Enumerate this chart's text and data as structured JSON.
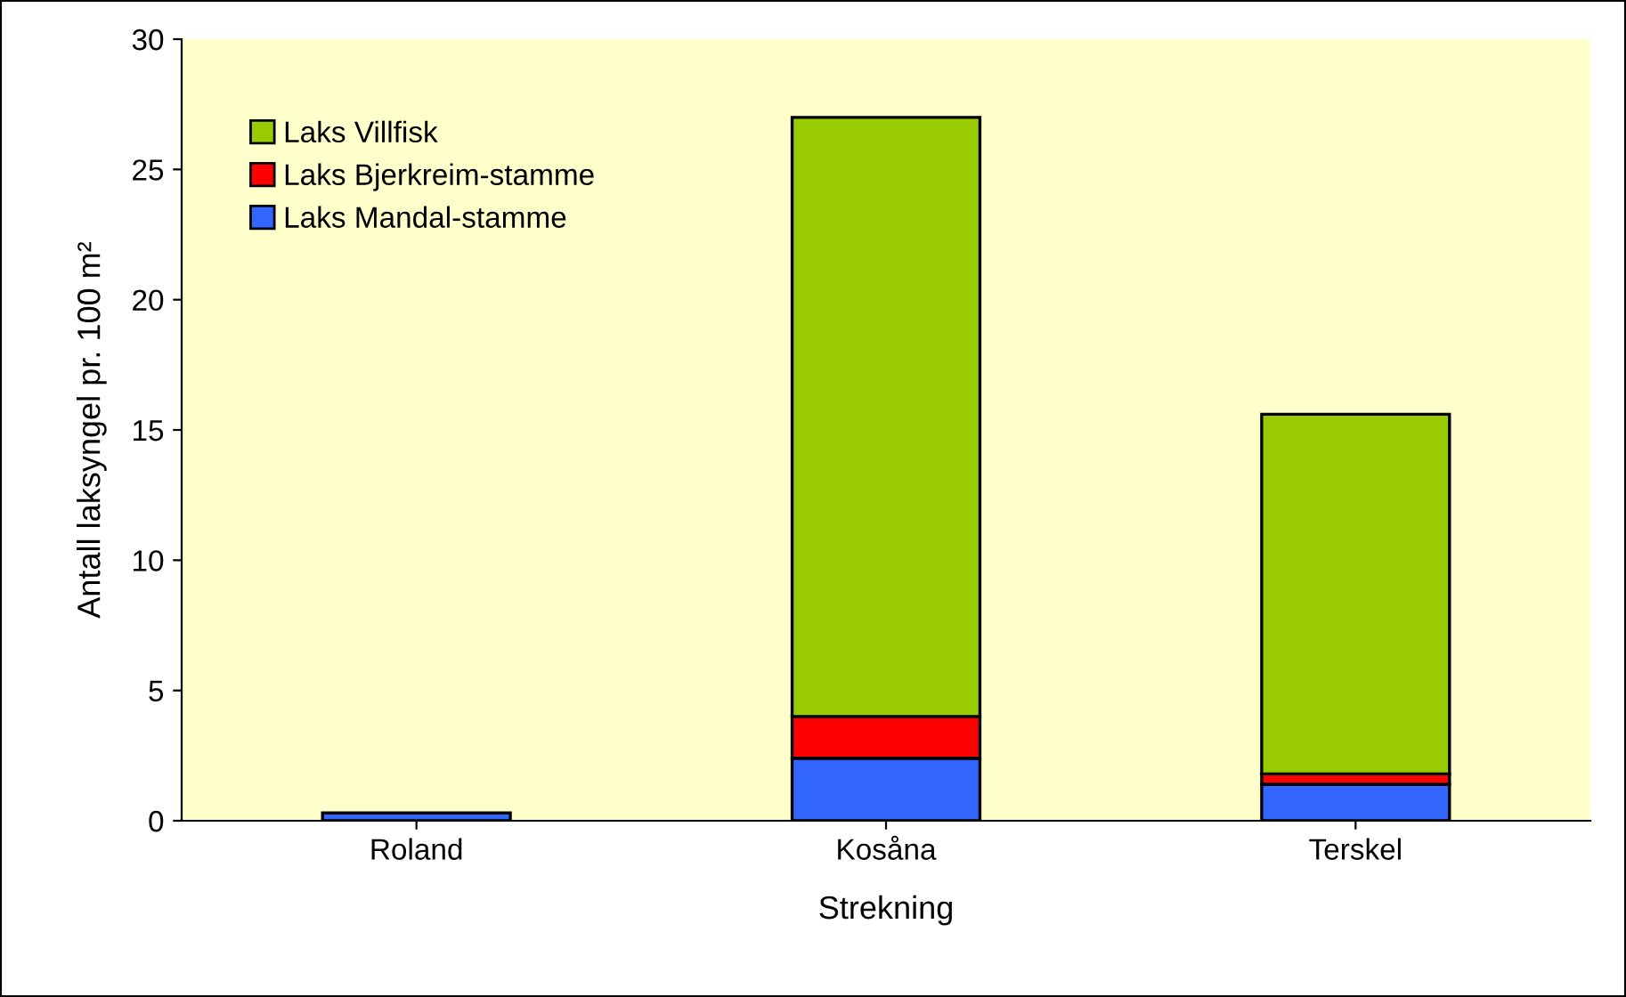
{
  "chart_data": {
    "type": "bar",
    "stacked": true,
    "xlabel": "Strekning",
    "ylabel": "Antall laksyngel pr. 100 m²",
    "categories": [
      "Roland",
      "Kosåna",
      "Terskel"
    ],
    "series": [
      {
        "name": "Laks Mandal-stamme",
        "color": "#3366ff",
        "values": [
          0.3,
          2.4,
          1.4
        ]
      },
      {
        "name": "Laks Bjerkreim-stamme",
        "color": "#ff0000",
        "values": [
          null,
          1.6,
          0.4
        ]
      },
      {
        "name": "Laks Villfisk",
        "color": "#99cc00",
        "values": [
          null,
          23.0,
          13.8
        ]
      }
    ],
    "ylim": [
      0,
      30
    ],
    "yticks": [
      0,
      5,
      10,
      15,
      20,
      25,
      30
    ],
    "grid": false,
    "legend": "top left"
  }
}
